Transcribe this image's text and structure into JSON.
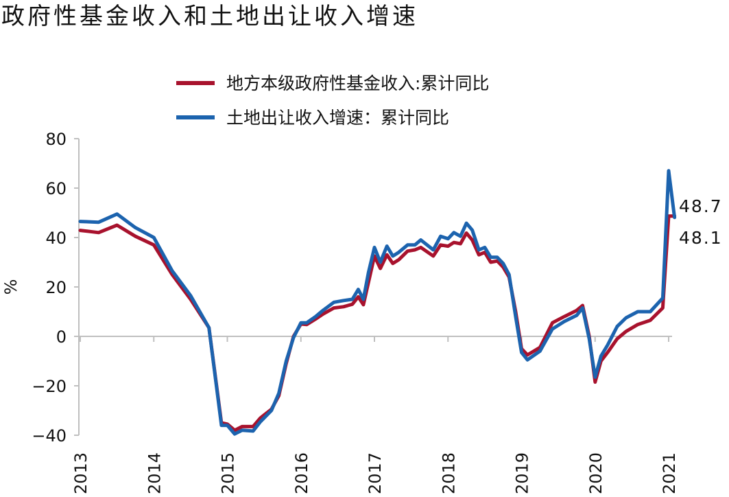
{
  "chart_data": {
    "type": "line",
    "title": "政府性基金收入和土地出让收入增速",
    "ylabel": "%",
    "xlabel": "",
    "ylim": [
      -40,
      80
    ],
    "yticks": [
      -40,
      -20,
      0,
      20,
      40,
      60,
      80
    ],
    "xlim": [
      2013.0,
      2021.08
    ],
    "xticks": [
      "2013",
      "2014",
      "2015",
      "2016",
      "2017",
      "2018",
      "2019",
      "2020",
      "2021"
    ],
    "grid": false,
    "legend_position": "top-center",
    "series": [
      {
        "name": "地方本级政府性基金收入:累计同比",
        "color": "#a8122d",
        "end_label": "48.7",
        "points": [
          [
            2013.0,
            42.9
          ],
          [
            2013.25,
            42.0
          ],
          [
            2013.5,
            45.0
          ],
          [
            2013.75,
            40.5
          ],
          [
            2014.0,
            37.0
          ],
          [
            2014.25,
            25.0
          ],
          [
            2014.5,
            15.0
          ],
          [
            2014.75,
            3.5
          ],
          [
            2014.92,
            -35.0
          ],
          [
            2015.0,
            -35.5
          ],
          [
            2015.1,
            -38.0
          ],
          [
            2015.2,
            -36.5
          ],
          [
            2015.35,
            -36.5
          ],
          [
            2015.45,
            -33.0
          ],
          [
            2015.6,
            -29.5
          ],
          [
            2015.7,
            -24.0
          ],
          [
            2015.8,
            -11.0
          ],
          [
            2015.9,
            0.0
          ],
          [
            2016.0,
            5.0
          ],
          [
            2016.08,
            4.8
          ],
          [
            2016.2,
            7.0
          ],
          [
            2016.3,
            9.0
          ],
          [
            2016.45,
            11.5
          ],
          [
            2016.58,
            12.0
          ],
          [
            2016.7,
            13.0
          ],
          [
            2016.78,
            16.0
          ],
          [
            2016.85,
            12.8
          ],
          [
            2016.92,
            22.0
          ],
          [
            2017.0,
            32.5
          ],
          [
            2017.08,
            27.5
          ],
          [
            2017.17,
            33.0
          ],
          [
            2017.25,
            29.5
          ],
          [
            2017.33,
            31.0
          ],
          [
            2017.45,
            34.5
          ],
          [
            2017.55,
            35.0
          ],
          [
            2017.63,
            36.0
          ],
          [
            2017.8,
            32.5
          ],
          [
            2017.9,
            37.0
          ],
          [
            2018.0,
            36.5
          ],
          [
            2018.08,
            38.0
          ],
          [
            2018.17,
            37.5
          ],
          [
            2018.25,
            41.8
          ],
          [
            2018.33,
            39.0
          ],
          [
            2018.42,
            33.0
          ],
          [
            2018.5,
            34.0
          ],
          [
            2018.58,
            30.0
          ],
          [
            2018.67,
            30.5
          ],
          [
            2018.75,
            28.0
          ],
          [
            2018.83,
            24.0
          ],
          [
            2018.92,
            10.0
          ],
          [
            2019.0,
            -5.0
          ],
          [
            2019.08,
            -7.5
          ],
          [
            2019.25,
            -4.5
          ],
          [
            2019.42,
            5.5
          ],
          [
            2019.58,
            8.0
          ],
          [
            2019.75,
            10.5
          ],
          [
            2019.83,
            12.5
          ],
          [
            2019.92,
            0.0
          ],
          [
            2020.0,
            -18.5
          ],
          [
            2020.08,
            -10.0
          ],
          [
            2020.17,
            -6.5
          ],
          [
            2020.3,
            -1.0
          ],
          [
            2020.42,
            2.0
          ],
          [
            2020.58,
            4.8
          ],
          [
            2020.75,
            6.5
          ],
          [
            2020.92,
            11.5
          ],
          [
            2021.0,
            48.7
          ],
          [
            2021.08,
            48.7
          ]
        ]
      },
      {
        "name": "土地出让收入增速：累计同比",
        "color": "#1c63ae",
        "end_label": "48.1",
        "points": [
          [
            2013.0,
            46.5
          ],
          [
            2013.25,
            46.2
          ],
          [
            2013.5,
            49.5
          ],
          [
            2013.75,
            44.0
          ],
          [
            2014.0,
            40.0
          ],
          [
            2014.25,
            26.5
          ],
          [
            2014.5,
            16.5
          ],
          [
            2014.75,
            3.5
          ],
          [
            2014.92,
            -36.0
          ],
          [
            2015.0,
            -36.0
          ],
          [
            2015.1,
            -39.5
          ],
          [
            2015.2,
            -38.0
          ],
          [
            2015.35,
            -38.3
          ],
          [
            2015.45,
            -34.5
          ],
          [
            2015.6,
            -30.0
          ],
          [
            2015.7,
            -23.0
          ],
          [
            2015.8,
            -10.0
          ],
          [
            2015.9,
            -0.5
          ],
          [
            2016.0,
            5.5
          ],
          [
            2016.08,
            5.5
          ],
          [
            2016.2,
            8.0
          ],
          [
            2016.3,
            10.5
          ],
          [
            2016.45,
            13.8
          ],
          [
            2016.58,
            14.5
          ],
          [
            2016.7,
            15.0
          ],
          [
            2016.78,
            19.0
          ],
          [
            2016.85,
            15.0
          ],
          [
            2016.92,
            26.0
          ],
          [
            2017.0,
            36.0
          ],
          [
            2017.08,
            30.0
          ],
          [
            2017.17,
            36.5
          ],
          [
            2017.25,
            32.5
          ],
          [
            2017.33,
            34.0
          ],
          [
            2017.45,
            37.0
          ],
          [
            2017.55,
            37.0
          ],
          [
            2017.63,
            39.0
          ],
          [
            2017.8,
            35.0
          ],
          [
            2017.9,
            40.5
          ],
          [
            2018.0,
            39.5
          ],
          [
            2018.08,
            42.0
          ],
          [
            2018.17,
            40.5
          ],
          [
            2018.25,
            45.8
          ],
          [
            2018.33,
            43.0
          ],
          [
            2018.42,
            35.0
          ],
          [
            2018.5,
            36.0
          ],
          [
            2018.58,
            32.0
          ],
          [
            2018.67,
            32.0
          ],
          [
            2018.75,
            29.5
          ],
          [
            2018.83,
            25.0
          ],
          [
            2018.92,
            8.0
          ],
          [
            2019.0,
            -6.5
          ],
          [
            2019.08,
            -9.5
          ],
          [
            2019.25,
            -6.0
          ],
          [
            2019.42,
            3.0
          ],
          [
            2019.58,
            6.0
          ],
          [
            2019.75,
            8.5
          ],
          [
            2019.83,
            11.5
          ],
          [
            2019.92,
            -1.0
          ],
          [
            2020.0,
            -16.5
          ],
          [
            2020.08,
            -8.0
          ],
          [
            2020.17,
            -3.5
          ],
          [
            2020.3,
            4.0
          ],
          [
            2020.42,
            7.5
          ],
          [
            2020.58,
            10.0
          ],
          [
            2020.75,
            10.0
          ],
          [
            2020.92,
            15.5
          ],
          [
            2021.0,
            67.0
          ],
          [
            2021.08,
            48.1
          ]
        ]
      }
    ]
  }
}
